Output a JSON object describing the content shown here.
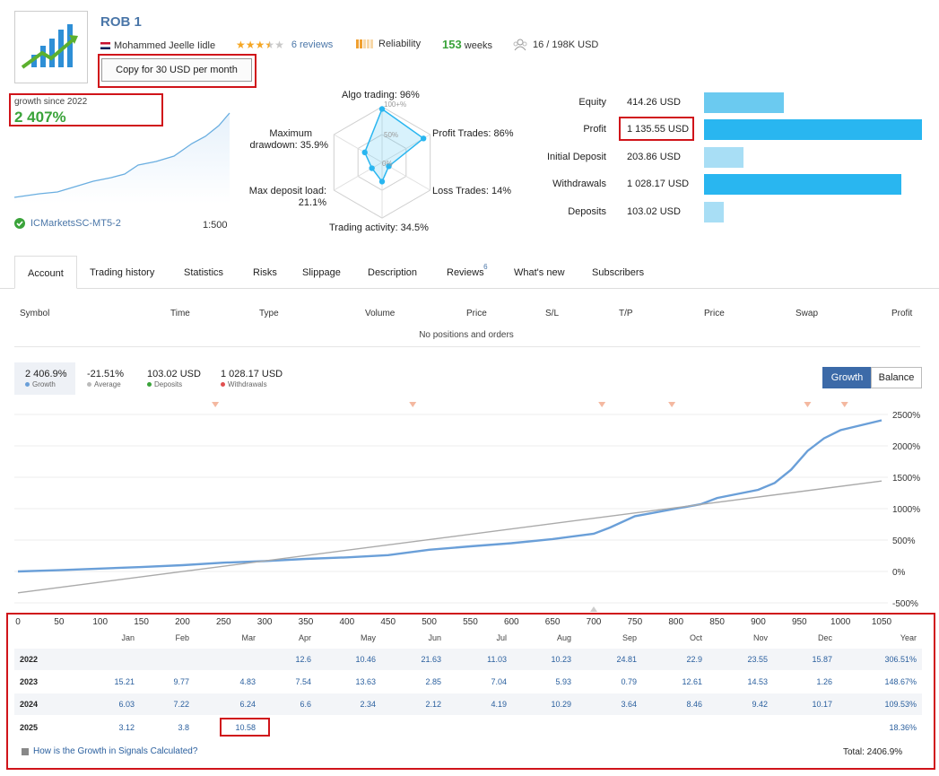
{
  "header": {
    "title": "ROB 1",
    "author": "Mohammed Jeelle Iidle",
    "rating_stars": 3.5,
    "reviews_label": "6 reviews",
    "reliability_label": "Reliability",
    "weeks_value": "153",
    "weeks_label": "weeks",
    "subscribers": "16 / 198K USD",
    "copy_button": "Copy for 30 USD per month"
  },
  "growth_box": {
    "label": "growth since 2022",
    "value": "2 407%",
    "broker": "ICMarketsSC-MT5-2",
    "leverage": "1:500"
  },
  "radar": {
    "algo": "Algo trading: 96%",
    "profit_trades": "Profit Trades: 86%",
    "loss_trades": "Loss Trades: 14%",
    "trading_activity": "Trading activity: 34.5%",
    "max_deposit_load_1": "Max deposit load:",
    "max_deposit_load_2": "21.1%",
    "max_drawdown_1": "Maximum",
    "max_drawdown_2": "drawdown: 35.9%",
    "tick_100": "100+%",
    "tick_50": "50%",
    "tick_0": "0%",
    "values": [
      0.96,
      0.86,
      0.14,
      0.345,
      0.211,
      0.359
    ]
  },
  "stats": [
    {
      "label": "Equity",
      "value": "414.26 USD",
      "fraction": 0.365,
      "color": "#6bcaf0"
    },
    {
      "label": "Profit",
      "value": "1 135.55 USD",
      "fraction": 1.0,
      "color": "#29b6f0"
    },
    {
      "label": "Initial Deposit",
      "value": "203.86 USD",
      "fraction": 0.18,
      "color": "#a8def5"
    },
    {
      "label": "Withdrawals",
      "value": "1 028.17 USD",
      "fraction": 0.905,
      "color": "#29b6f0"
    },
    {
      "label": "Deposits",
      "value": "103.02 USD",
      "fraction": 0.091,
      "color": "#a8def5"
    }
  ],
  "tabs": [
    {
      "label": "Account",
      "active": true
    },
    {
      "label": "Trading history"
    },
    {
      "label": "Statistics"
    },
    {
      "label": "Risks"
    },
    {
      "label": "Slippage"
    },
    {
      "label": "Description"
    },
    {
      "label": "Reviews",
      "badge": "6"
    },
    {
      "label": "What's new"
    },
    {
      "label": "Subscribers"
    }
  ],
  "positions": {
    "headers": [
      "Symbol",
      "Time",
      "Type",
      "Volume",
      "Price",
      "S/L",
      "T/P",
      "Price",
      "Swap",
      "Profit"
    ],
    "empty_text": "No positions and orders"
  },
  "summary": {
    "growth": "2 406.9%",
    "growth_label": "Growth",
    "average": "-21.51%",
    "average_label": "Average",
    "deposits": "103.02 USD",
    "deposits_label": "Deposits",
    "withdrawals": "1 028.17 USD",
    "withdrawals_label": "Withdrawals",
    "btn_growth": "Growth",
    "btn_balance": "Balance"
  },
  "chart_data": {
    "type": "line",
    "x_ticks": [
      0,
      50,
      100,
      150,
      200,
      250,
      300,
      350,
      400,
      450,
      500,
      550,
      600,
      650,
      700,
      750,
      800,
      850,
      900,
      950,
      1000,
      1050
    ],
    "y_ticks": [
      -500,
      0,
      500,
      1000,
      1500,
      2000,
      2500
    ],
    "y_tick_labels": [
      "-500%",
      "0%",
      "500%",
      "1000%",
      "1500%",
      "2000%",
      "2500%"
    ],
    "xlim": [
      0,
      1050
    ],
    "ylim": [
      -500,
      2500
    ],
    "series": [
      {
        "role": "growth",
        "color": "#6a9fd8",
        "x": [
          0,
          50,
          100,
          150,
          200,
          250,
          300,
          350,
          400,
          450,
          500,
          550,
          600,
          650,
          700,
          720,
          750,
          800,
          830,
          850,
          900,
          920,
          940,
          960,
          980,
          1000,
          1050
        ],
        "y": [
          0,
          20,
          45,
          70,
          100,
          140,
          165,
          200,
          225,
          260,
          345,
          400,
          450,
          515,
          600,
          700,
          880,
          1000,
          1070,
          1170,
          1300,
          1410,
          1620,
          1920,
          2120,
          2250,
          2407
        ]
      },
      {
        "role": "trend",
        "color": "#aaaaaa",
        "x": [
          0,
          1050
        ],
        "y": [
          -340,
          1440
        ]
      }
    ],
    "markers_x": [
      240,
      480,
      710,
      795,
      960,
      1005
    ]
  },
  "monthly": {
    "months": [
      "Jan",
      "Feb",
      "Mar",
      "Apr",
      "May",
      "Jun",
      "Jul",
      "Aug",
      "Sep",
      "Oct",
      "Nov",
      "Dec",
      "Year"
    ],
    "rows": [
      {
        "year": "2022",
        "values": [
          "",
          "",
          "",
          "12.6",
          "10.46",
          "21.63",
          "11.03",
          "10.23",
          "24.81",
          "22.9",
          "23.55",
          "15.87",
          "306.51%"
        ]
      },
      {
        "year": "2023",
        "values": [
          "15.21",
          "9.77",
          "4.83",
          "7.54",
          "13.63",
          "2.85",
          "7.04",
          "5.93",
          "0.79",
          "12.61",
          "14.53",
          "1.26",
          "148.67%"
        ]
      },
      {
        "year": "2024",
        "values": [
          "6.03",
          "7.22",
          "6.24",
          "6.6",
          "2.34",
          "2.12",
          "4.19",
          "10.29",
          "3.64",
          "8.46",
          "9.42",
          "10.17",
          "109.53%"
        ]
      },
      {
        "year": "2025",
        "values": [
          "3.12",
          "3.8",
          "10.58",
          "",
          "",
          "",
          "",
          "",
          "",
          "",
          "",
          "",
          "18.36%"
        ]
      }
    ],
    "help_link": "How is the Growth in Signals Calculated?",
    "total": "Total: 2406.9%"
  }
}
